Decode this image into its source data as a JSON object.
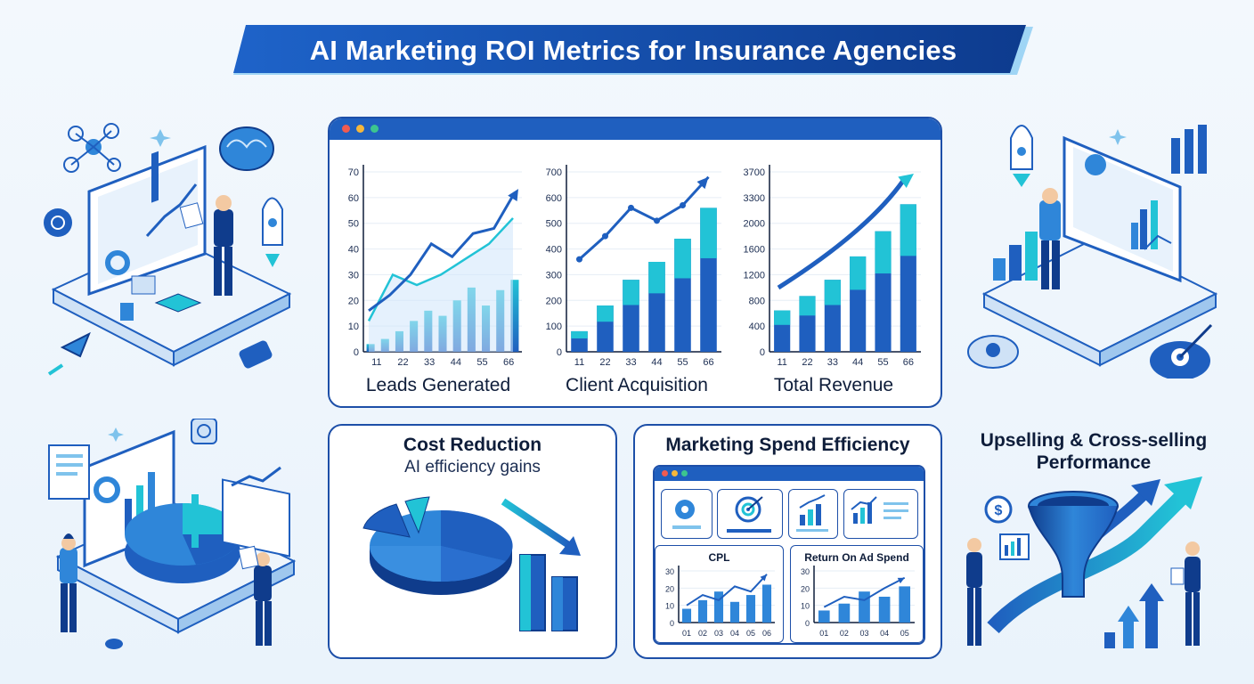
{
  "title": "AI Marketing ROI Metrics for Insurance Agencies",
  "charts": {
    "leads": {
      "label": "Leads Generated",
      "yticks": [
        "0",
        "10",
        "20",
        "30",
        "40",
        "50",
        "60",
        "70"
      ],
      "xticks": [
        "11",
        "22",
        "33",
        "44",
        "55",
        "66"
      ],
      "bars": [
        3,
        5,
        8,
        12,
        16,
        14,
        20,
        25,
        18,
        24,
        28
      ],
      "line_dark": [
        16,
        22,
        30,
        42,
        37,
        46,
        48,
        62
      ],
      "line_light": [
        12,
        30,
        26,
        30,
        36,
        42,
        52
      ],
      "ylim": [
        0,
        70
      ]
    },
    "clients": {
      "label": "Client Acquisition",
      "yticks": [
        "0",
        "100",
        "200",
        "300",
        "400",
        "500",
        "600",
        "700"
      ],
      "xticks": [
        "11",
        "22",
        "33",
        "44",
        "55",
        "66"
      ],
      "bars": [
        80,
        180,
        280,
        350,
        440,
        560
      ],
      "line": [
        360,
        450,
        560,
        510,
        570,
        680
      ],
      "ylim": [
        0,
        700
      ]
    },
    "revenue": {
      "label": "Total Revenue",
      "yticks": [
        "0",
        "400",
        "800",
        "1200",
        "1600",
        "2000",
        "3300",
        "3700"
      ],
      "xticks": [
        "11",
        "22",
        "33",
        "44",
        "55",
        "66"
      ],
      "bars": [
        0.23,
        0.31,
        0.4,
        0.53,
        0.67,
        0.82
      ],
      "trend": "up",
      "ylim": [
        0,
        3700
      ]
    }
  },
  "cost_reduction": {
    "title": "Cost Reduction",
    "subtitle": "AI efficiency gains"
  },
  "spend_efficiency": {
    "title": "Marketing Spend Efficiency",
    "cpl": {
      "label": "CPL",
      "yticks": [
        "0",
        "10",
        "20",
        "30"
      ],
      "xticks": [
        "01",
        "02",
        "03",
        "04",
        "05",
        "06"
      ],
      "bars": [
        8,
        13,
        18,
        12,
        16,
        22
      ],
      "line": [
        10,
        16,
        13,
        21,
        18,
        28
      ]
    },
    "roas": {
      "label": "Return On Ad Spend",
      "yticks": [
        "0",
        "10",
        "20",
        "30"
      ],
      "xticks": [
        "01",
        "02",
        "03",
        "04",
        "05"
      ],
      "bars": [
        7,
        11,
        18,
        15,
        21
      ],
      "line": [
        9,
        15,
        13,
        20,
        26
      ]
    }
  },
  "upselling": {
    "title_line1": "Upselling & Cross-selling",
    "title_line2": "Performance"
  },
  "colors": {
    "navy": "#0f3c8c",
    "blue": "#1f5fbf",
    "mid": "#2f86d9",
    "teal": "#22c3d6",
    "light": "#cfe6fb"
  }
}
